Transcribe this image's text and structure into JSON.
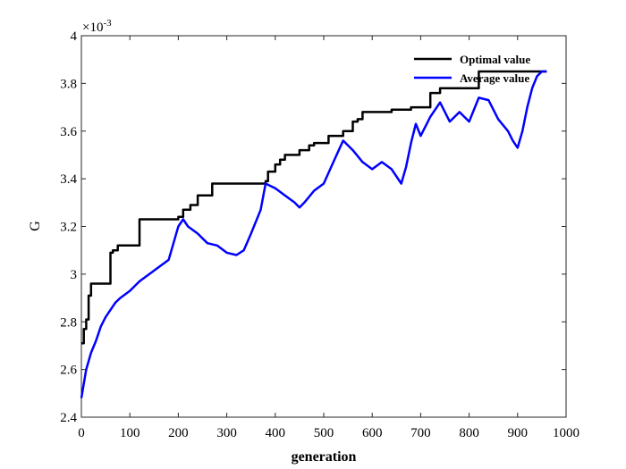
{
  "chart_data": {
    "type": "line",
    "xlabel": "generation",
    "ylabel": "G",
    "y_exponent_label": "×10",
    "y_exponent_power": "-3",
    "xlim": [
      0,
      1000
    ],
    "ylim": [
      2.4,
      4.0
    ],
    "x_ticks": [
      0,
      100,
      200,
      300,
      400,
      500,
      600,
      700,
      800,
      900,
      1000
    ],
    "y_ticks": [
      2.4,
      2.6,
      2.8,
      3.0,
      3.2,
      3.4,
      3.6,
      3.8,
      4.0
    ],
    "x_tick_labels": [
      "0",
      "100",
      "200",
      "300",
      "400",
      "500",
      "600",
      "700",
      "800",
      "900",
      "1000"
    ],
    "y_tick_labels": [
      "2.4",
      "2.6",
      "2.8",
      "3",
      "3.2",
      "3.4",
      "3.6",
      "3.8",
      "4"
    ],
    "grid": false,
    "legend_position": "top-right",
    "series": [
      {
        "name": "Optimal value",
        "color": "#000000",
        "style": "step",
        "x": [
          0,
          5,
          10,
          15,
          20,
          30,
          60,
          65,
          75,
          100,
          120,
          130,
          190,
          200,
          210,
          225,
          240,
          270,
          300,
          380,
          385,
          400,
          410,
          420,
          450,
          470,
          480,
          510,
          540,
          560,
          570,
          580,
          600,
          640,
          680,
          700,
          720,
          740,
          800,
          820,
          850,
          870,
          900,
          960
        ],
        "y": [
          2.71,
          2.77,
          2.81,
          2.91,
          2.96,
          2.96,
          3.09,
          3.1,
          3.12,
          3.12,
          3.23,
          3.23,
          3.23,
          3.24,
          3.27,
          3.29,
          3.33,
          3.38,
          3.38,
          3.39,
          3.43,
          3.46,
          3.48,
          3.5,
          3.52,
          3.54,
          3.55,
          3.58,
          3.6,
          3.64,
          3.65,
          3.68,
          3.68,
          3.69,
          3.7,
          3.7,
          3.76,
          3.78,
          3.78,
          3.85,
          3.85,
          3.85,
          3.85,
          3.85
        ]
      },
      {
        "name": "Average value",
        "color": "#0000ff",
        "style": "line",
        "x": [
          0,
          10,
          20,
          30,
          40,
          50,
          60,
          70,
          80,
          100,
          120,
          140,
          160,
          180,
          190,
          200,
          210,
          220,
          240,
          260,
          280,
          300,
          320,
          335,
          350,
          370,
          380,
          400,
          420,
          440,
          450,
          460,
          480,
          500,
          520,
          540,
          560,
          580,
          600,
          620,
          640,
          660,
          670,
          680,
          690,
          700,
          710,
          720,
          740,
          760,
          780,
          800,
          820,
          840,
          860,
          880,
          890,
          900,
          910,
          920,
          930,
          940,
          950,
          960
        ],
        "y": [
          2.48,
          2.6,
          2.67,
          2.72,
          2.78,
          2.82,
          2.85,
          2.88,
          2.9,
          2.93,
          2.97,
          3.0,
          3.03,
          3.06,
          3.13,
          3.2,
          3.23,
          3.2,
          3.17,
          3.13,
          3.12,
          3.09,
          3.08,
          3.1,
          3.17,
          3.27,
          3.38,
          3.36,
          3.33,
          3.3,
          3.28,
          3.3,
          3.35,
          3.38,
          3.47,
          3.56,
          3.52,
          3.47,
          3.44,
          3.47,
          3.44,
          3.38,
          3.45,
          3.55,
          3.63,
          3.58,
          3.62,
          3.66,
          3.72,
          3.64,
          3.68,
          3.64,
          3.74,
          3.73,
          3.65,
          3.6,
          3.56,
          3.53,
          3.6,
          3.7,
          3.78,
          3.83,
          3.85,
          3.85
        ]
      }
    ]
  }
}
